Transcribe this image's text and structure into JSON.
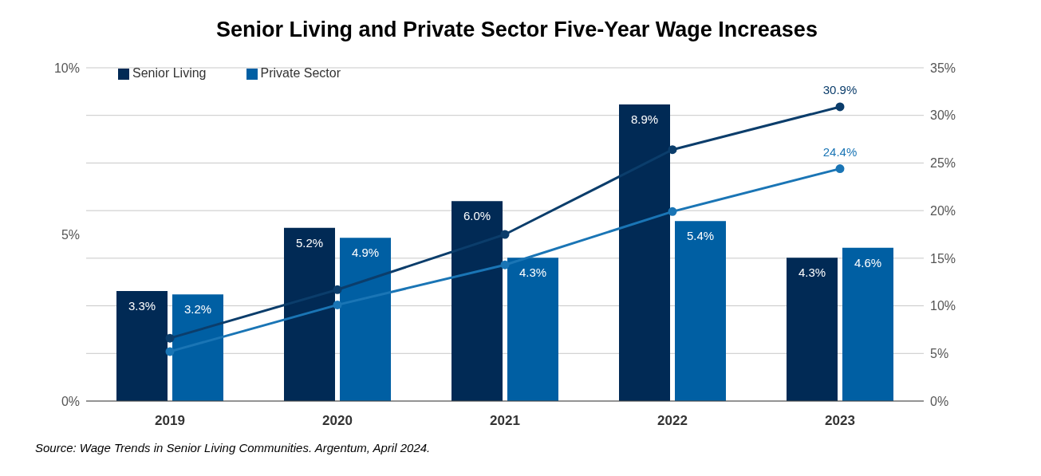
{
  "chart_data": {
    "type": "bar",
    "title": "Senior Living and Private Sector Five-Year Wage Increases",
    "categories": [
      "2019",
      "2020",
      "2021",
      "2022",
      "2023"
    ],
    "series": [
      {
        "name": "Senior Living",
        "color": "#012a55",
        "values": [
          3.3,
          5.2,
          6.0,
          8.9,
          4.3
        ],
        "value_labels": [
          "3.3%",
          "5.2%",
          "6.0%",
          "8.9%",
          "4.3%"
        ]
      },
      {
        "name": "Private Sector",
        "color": "#005fa3",
        "values": [
          3.2,
          4.9,
          4.3,
          5.4,
          4.6
        ],
        "value_labels": [
          "3.2%",
          "4.9%",
          "4.3%",
          "5.4%",
          "4.6%"
        ]
      },
      {
        "type": "line",
        "axis": "y2",
        "color": "#0b3d6b",
        "values": [
          6.6,
          11.7,
          17.5,
          26.4,
          30.9
        ],
        "value_labels": [
          null,
          null,
          null,
          null,
          "30.9%"
        ]
      },
      {
        "type": "line",
        "axis": "y2",
        "color": "#1a75b5",
        "values": [
          5.2,
          10.1,
          14.3,
          19.9,
          24.4
        ],
        "value_labels": [
          null,
          null,
          null,
          null,
          "24.4%"
        ]
      }
    ],
    "ylim": [
      0,
      10
    ],
    "yticks": [
      {
        "value": 0,
        "label": "0%"
      },
      {
        "value": 5,
        "label": "5%"
      },
      {
        "value": 10,
        "label": "10%"
      }
    ],
    "y2lim": [
      0,
      35
    ],
    "y2ticks": [
      {
        "value": 0,
        "label": "0%"
      },
      {
        "value": 5,
        "label": "5%"
      },
      {
        "value": 10,
        "label": "10%"
      },
      {
        "value": 15,
        "label": "15%"
      },
      {
        "value": 20,
        "label": "20%"
      },
      {
        "value": 25,
        "label": "25%"
      },
      {
        "value": 30,
        "label": "30%"
      },
      {
        "value": 35,
        "label": "35%"
      }
    ],
    "grid": "y2",
    "legend": "top left",
    "marker": "circle",
    "line_style": "solid",
    "annotations": [
      "Source: Wage Trends in Senior Living Communities. Argentum, April 2024."
    ]
  }
}
